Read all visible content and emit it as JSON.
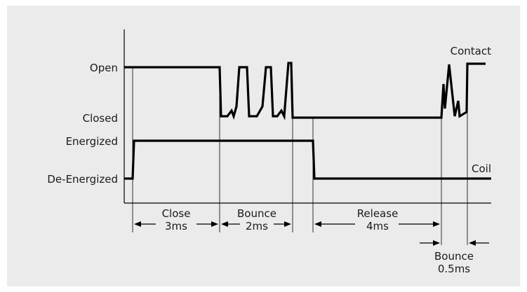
{
  "levels": {
    "open": "Open",
    "closed": "Closed",
    "energized": "Energized",
    "de_energized": "De-Energized"
  },
  "signals": {
    "contact": "Contact",
    "coil": "Coil"
  },
  "intervals": {
    "close": {
      "name": "Close",
      "value": "3ms"
    },
    "bounce_1": {
      "name": "Bounce",
      "value": "2ms"
    },
    "release": {
      "name": "Release",
      "value": "4ms"
    },
    "bounce_2": {
      "name": "Bounce",
      "value": "0.5ms"
    }
  },
  "colors": {
    "background": "#ebebeb",
    "trace": "#000000",
    "text": "#1a1a1a"
  }
}
